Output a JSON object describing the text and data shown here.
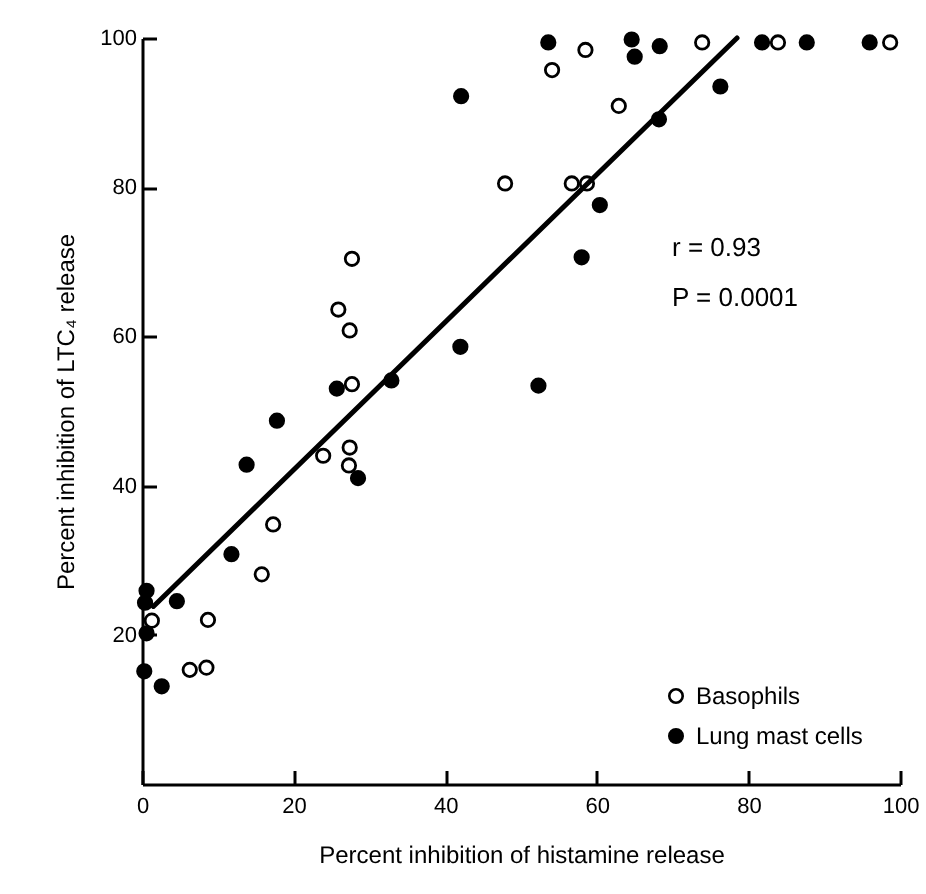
{
  "chart_data": {
    "type": "scatter",
    "xlabel": "Percent inhibition of histamine release",
    "ylabel": "Percent inhibition of LTC₄ release",
    "xlim": [
      0,
      100
    ],
    "ylim": [
      0,
      100
    ],
    "xticks": [
      0,
      20,
      40,
      60,
      80,
      100
    ],
    "yticks": [
      20,
      40,
      60,
      80,
      100
    ],
    "grid": false,
    "legend": "bottom right",
    "annotations": [
      "r = 0.93",
      "P = 0.0001"
    ],
    "series": [
      {
        "name": "Basophils",
        "color": "#ffffff",
        "marker": "circle",
        "x": [
          47.9,
          27.7,
          25.9,
          27.4,
          27.7,
          54.1,
          58.5,
          73.9,
          83.9,
          98.7,
          62.9,
          56.7,
          58.7,
          23.9,
          27.4,
          27.3,
          17.3,
          15.8,
          1.3,
          8.7,
          6.3,
          8.5
        ],
        "values": [
          80.5,
          70.4,
          63.6,
          60.8,
          53.6,
          95.7,
          98.4,
          99.4,
          99.4,
          99.4,
          90.9,
          80.5,
          80.5,
          44.0,
          45.1,
          42.7,
          34.8,
          28.1,
          21.9,
          22.0,
          15.3,
          15.6
        ]
      },
      {
        "name": "Lung mast cells",
        "color": "#000000",
        "marker": "circle",
        "x": [
          42.1,
          42.0,
          25.7,
          32.9,
          53.6,
          64.6,
          65.0,
          68.3,
          81.8,
          87.7,
          96.0,
          76.3,
          68.2,
          60.4,
          58.0,
          52.3,
          17.8,
          13.8,
          28.5,
          11.8,
          0.6,
          0.4,
          4.6,
          0.6,
          0.3,
          2.6
        ],
        "values": [
          92.2,
          58.6,
          53.0,
          54.1,
          99.4,
          99.8,
          97.5,
          98.9,
          99.4,
          99.4,
          99.4,
          93.5,
          89.1,
          77.6,
          70.6,
          53.4,
          48.7,
          42.8,
          41.0,
          30.8,
          25.9,
          24.3,
          24.5,
          20.2,
          15.1,
          13.1
        ]
      },
      {
        "type": "line",
        "color": "#000000",
        "marker": "none",
        "line_style": "solid",
        "x": [
          1.5,
          78.5
        ],
        "values": [
          23.8,
          100
        ]
      }
    ]
  }
}
